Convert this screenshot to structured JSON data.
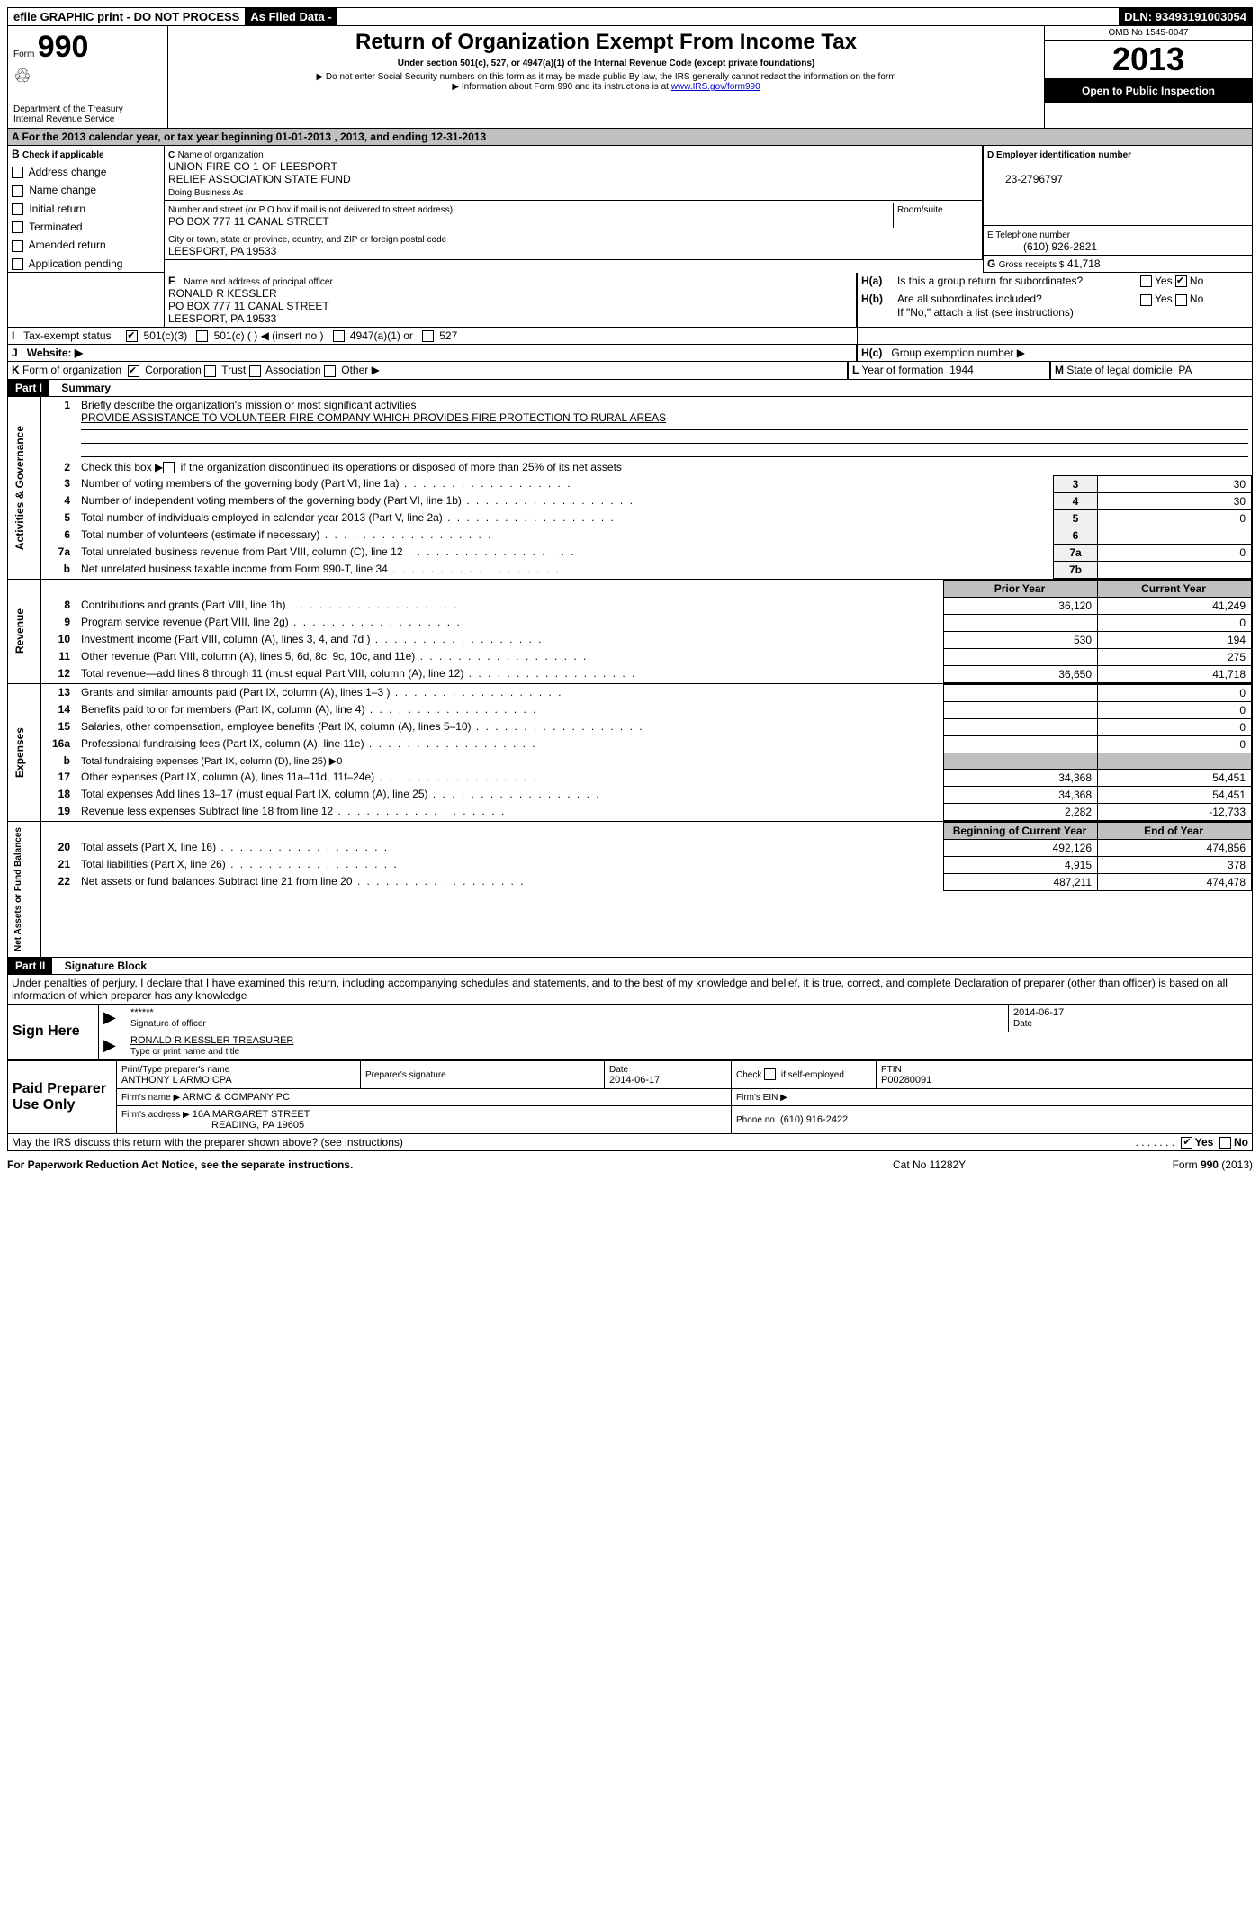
{
  "topbar": {
    "efile": "efile GRAPHIC print - DO NOT PROCESS",
    "asfiled": "As Filed Data -",
    "dln_label": "DLN:",
    "dln": "93493191003054"
  },
  "header": {
    "form_label": "Form",
    "form_number": "990",
    "dept1": "Department of the Treasury",
    "dept2": "Internal Revenue Service",
    "title": "Return of Organization Exempt From Income Tax",
    "subtitle": "Under section 501(c), 527, or 4947(a)(1) of the Internal Revenue Code (except private foundations)",
    "note1": "▶ Do not enter Social Security numbers on this form as it may be made public  By law, the IRS generally cannot redact the information on the form",
    "note2_pre": "▶ Information about Form 990 and its instructions is at ",
    "note2_link": "www.IRS.gov/form990",
    "omb": "OMB No  1545-0047",
    "year": "2013",
    "open": "Open to Public Inspection"
  },
  "sectionA": "A  For the 2013 calendar year, or tax year beginning 01-01-2013     , 2013, and ending 12-31-2013",
  "B": {
    "label": "B",
    "check": "Check if applicable",
    "items": [
      "Address change",
      "Name change",
      "Initial return",
      "Terminated",
      "Amended return",
      "Application pending"
    ]
  },
  "C": {
    "label": "C",
    "name_label": "Name of organization",
    "name1": "UNION FIRE CO 1 OF LEESPORT",
    "name2": "RELIEF ASSOCIATION STATE FUND",
    "dba_label": "Doing Business As",
    "street_label": "Number and street (or P O  box if mail is not delivered to street address)",
    "room_label": "Room/suite",
    "street": "PO BOX 777 11 CANAL STREET",
    "city_label": "City or town, state or province, country, and ZIP or foreign postal code",
    "city": "LEESPORT, PA  19533"
  },
  "D": {
    "label": "D Employer identification number",
    "ein": "23-2796797"
  },
  "E": {
    "label": "E Telephone number",
    "phone": "(610) 926-2821"
  },
  "G": {
    "label": "G",
    "text": "Gross receipts $",
    "val": "41,718"
  },
  "F": {
    "label": "F",
    "text": "Name and address of principal officer",
    "name": "RONALD R KESSLER",
    "addr1": "PO BOX 777 11 CANAL STREET",
    "addr2": "LEESPORT, PA  19533"
  },
  "H": {
    "a_label": "H(a)",
    "a_text": "Is this a group return for subordinates?",
    "b_label": "H(b)",
    "b_text": "Are all subordinates included?",
    "b_note": "If \"No,\" attach a list  (see instructions)",
    "c_label": "H(c)",
    "c_text": "Group exemption number ▶",
    "yes": "Yes",
    "no": "No"
  },
  "I": {
    "label": "I",
    "text": "Tax-exempt status",
    "opts": [
      "501(c)(3)",
      "501(c) (   ) ◀ (insert no )",
      "4947(a)(1) or",
      "527"
    ]
  },
  "J": {
    "label": "J",
    "text": "Website: ▶"
  },
  "K": {
    "label": "K",
    "text": "Form of organization",
    "opts": [
      "Corporation",
      "Trust",
      "Association",
      "Other ▶"
    ]
  },
  "L": {
    "label": "L",
    "text": "Year of formation",
    "val": "1944"
  },
  "M": {
    "label": "M",
    "text": "State of legal domicile",
    "val": "PA"
  },
  "part1": {
    "label": "Part I",
    "title": "Summary",
    "side1": "Activities & Governance",
    "side2": "Revenue",
    "side3": "Expenses",
    "side4": "Net Assets or Fund Balances",
    "line1_label": "Briefly describe the organization's mission or most significant activities",
    "line1_text": "PROVIDE ASSISTANCE TO VOLUNTEER FIRE COMPANY WHICH PROVIDES FIRE PROTECTION TO RURAL AREAS",
    "line2": "Check this box ▶     if the organization discontinued its operations or disposed of more than 25% of its net assets",
    "rows_gov": [
      {
        "n": "3",
        "t": "Number of voting members of the governing body (Part VI, line 1a)",
        "b": "3",
        "v": "30"
      },
      {
        "n": "4",
        "t": "Number of independent voting members of the governing body (Part VI, line 1b)",
        "b": "4",
        "v": "30"
      },
      {
        "n": "5",
        "t": "Total number of individuals employed in calendar year 2013 (Part V, line 2a)",
        "b": "5",
        "v": "0"
      },
      {
        "n": "6",
        "t": "Total number of volunteers (estimate if necessary)",
        "b": "6",
        "v": ""
      },
      {
        "n": "7a",
        "t": "Total unrelated business revenue from Part VIII, column (C), line 12",
        "b": "7a",
        "v": "0"
      },
      {
        "n": "b",
        "t": "Net unrelated business taxable income from Form 990-T, line 34",
        "b": "7b",
        "v": ""
      }
    ],
    "col_prior": "Prior Year",
    "col_current": "Current Year",
    "rows_rev": [
      {
        "n": "8",
        "t": "Contributions and grants (Part VIII, line 1h)",
        "p": "36,120",
        "c": "41,249"
      },
      {
        "n": "9",
        "t": "Program service revenue (Part VIII, line 2g)",
        "p": "",
        "c": "0"
      },
      {
        "n": "10",
        "t": "Investment income (Part VIII, column (A), lines 3, 4, and 7d )",
        "p": "530",
        "c": "194"
      },
      {
        "n": "11",
        "t": "Other revenue (Part VIII, column (A), lines 5, 6d, 8c, 9c, 10c, and 11e)",
        "p": "",
        "c": "275"
      },
      {
        "n": "12",
        "t": "Total revenue—add lines 8 through 11 (must equal Part VIII, column (A), line 12)",
        "p": "36,650",
        "c": "41,718"
      }
    ],
    "rows_exp": [
      {
        "n": "13",
        "t": "Grants and similar amounts paid (Part IX, column (A), lines 1–3 )",
        "p": "",
        "c": "0"
      },
      {
        "n": "14",
        "t": "Benefits paid to or for members (Part IX, column (A), line 4)",
        "p": "",
        "c": "0"
      },
      {
        "n": "15",
        "t": "Salaries, other compensation, employee benefits (Part IX, column (A), lines 5–10)",
        "p": "",
        "c": "0"
      },
      {
        "n": "16a",
        "t": "Professional fundraising fees (Part IX, column (A), line 11e)",
        "p": "",
        "c": "0"
      },
      {
        "n": "b",
        "t": "Total fundraising expenses (Part IX, column (D), line 25) ▶0",
        "p": "gray",
        "c": "gray"
      },
      {
        "n": "17",
        "t": "Other expenses (Part IX, column (A), lines 11a–11d, 11f–24e)",
        "p": "34,368",
        "c": "54,451"
      },
      {
        "n": "18",
        "t": "Total expenses  Add lines 13–17 (must equal Part IX, column (A), line 25)",
        "p": "34,368",
        "c": "54,451"
      },
      {
        "n": "19",
        "t": "Revenue less expenses  Subtract line 18 from line 12",
        "p": "2,282",
        "c": "-12,733"
      }
    ],
    "col_begin": "Beginning of Current Year",
    "col_end": "End of Year",
    "rows_net": [
      {
        "n": "20",
        "t": "Total assets (Part X, line 16)",
        "p": "492,126",
        "c": "474,856"
      },
      {
        "n": "21",
        "t": "Total liabilities (Part X, line 26)",
        "p": "4,915",
        "c": "378"
      },
      {
        "n": "22",
        "t": "Net assets or fund balances  Subtract line 21 from line 20",
        "p": "487,211",
        "c": "474,478"
      }
    ]
  },
  "part2": {
    "label": "Part II",
    "title": "Signature Block",
    "decl": "Under penalties of perjury, I declare that I have examined this return, including accompanying schedules and statements, and to the best of my knowledge and belief, it is true, correct, and complete  Declaration of preparer (other than officer) is based on all information of which preparer has any knowledge",
    "sign_here": "Sign Here",
    "sig_mask": "******",
    "sig_date": "2014-06-17",
    "sig_of_officer": "Signature of officer",
    "date_label": "Date",
    "officer_name": "RONALD R KESSLER TREASURER",
    "type_name": "Type or print name and title",
    "paid": "Paid Preparer Use Only",
    "prep_name_label": "Print/Type preparer's name",
    "prep_name": "ANTHONY L ARMO CPA",
    "prep_sig_label": "Preparer's signature",
    "prep_date_label": "Date",
    "prep_date": "2014-06-17",
    "self_emp": "Check        if self-employed",
    "ptin_label": "PTIN",
    "ptin": "P00280091",
    "firm_name_label": "Firm's name     ▶",
    "firm_name": "ARMO & COMPANY PC",
    "firm_ein_label": "Firm's EIN ▶",
    "firm_addr_label": "Firm's address ▶",
    "firm_addr1": "16A MARGARET STREET",
    "firm_addr2": "READING, PA  19605",
    "firm_phone_label": "Phone no",
    "firm_phone": "(610) 916-2422",
    "discuss": "May the IRS discuss this return with the preparer shown above? (see instructions)",
    "yes": "Yes",
    "no": "No"
  },
  "footer": {
    "left": "For Paperwork Reduction Act Notice, see the separate instructions.",
    "mid": "Cat  No  11282Y",
    "right": "Form 990 (2013)"
  }
}
